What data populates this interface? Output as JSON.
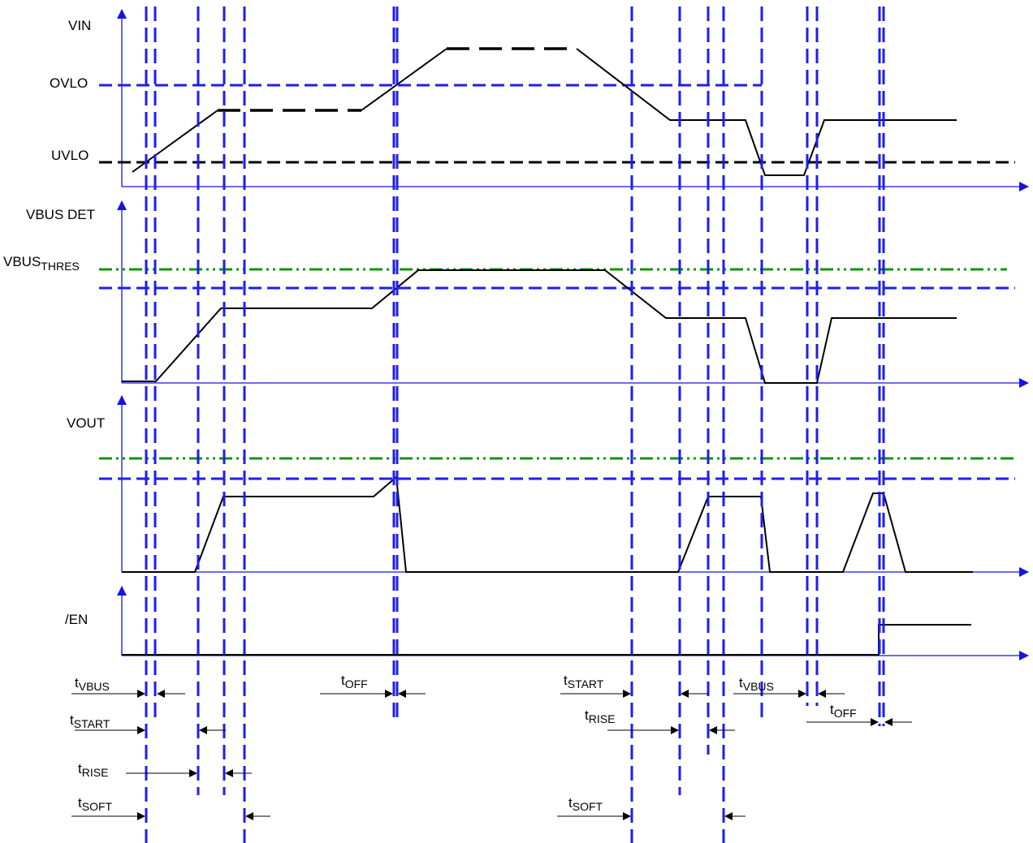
{
  "colors": {
    "axis": "#1515e0",
    "marker": "#1e1ef0",
    "signal": "#000000",
    "threshold_green": "#129312",
    "threshold_blue": "#1e1ef0"
  },
  "labels": {
    "vin": "VIN",
    "ovlo": "OVLO",
    "uvlo": "UVLO",
    "vbus_det": "VBUS DET",
    "vbus_thres_main": "VBUS",
    "vbus_thres_sub": "THRES",
    "vout": "VOUT",
    "en": "/EN"
  },
  "timing": [
    {
      "main": "t",
      "sub": "VBUS"
    },
    {
      "main": "t",
      "sub": "START"
    },
    {
      "main": "t",
      "sub": "RISE"
    },
    {
      "main": "t",
      "sub": "SOFT"
    },
    {
      "main": "t",
      "sub": "OFF"
    },
    {
      "main": "t",
      "sub": "START"
    },
    {
      "main": "t",
      "sub": "RISE"
    },
    {
      "main": "t",
      "sub": "SOFT"
    },
    {
      "main": "t",
      "sub": "VBUS"
    },
    {
      "main": "t",
      "sub": "OFF"
    }
  ]
}
